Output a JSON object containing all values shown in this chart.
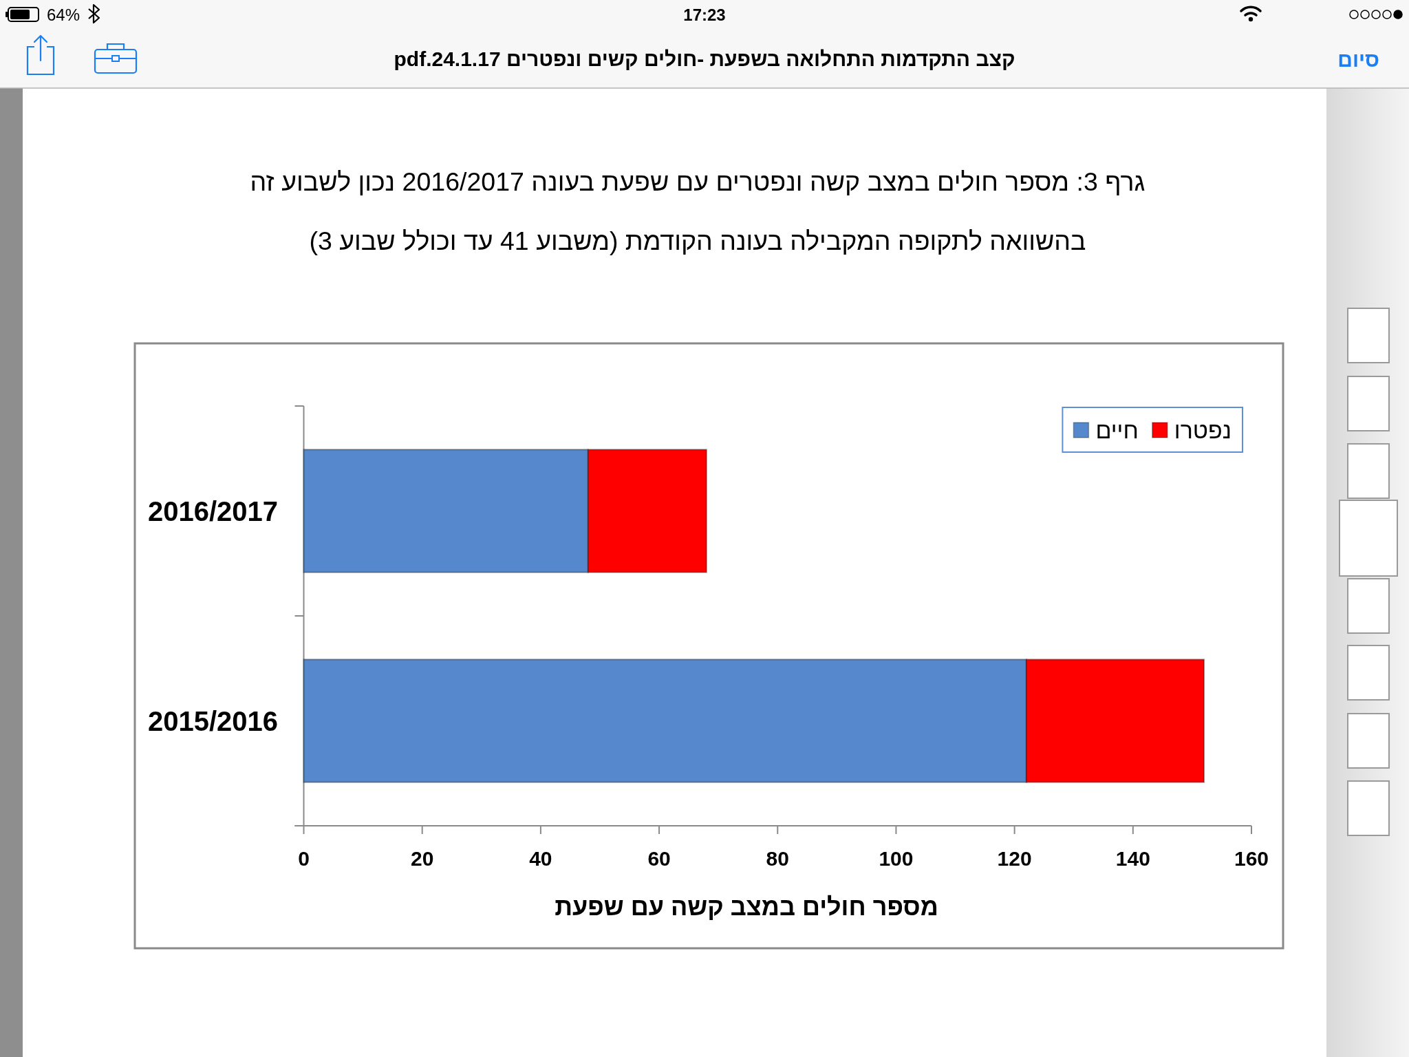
{
  "chart_data": {
    "type": "bar",
    "orientation": "horizontal",
    "stacked": true,
    "title": "גרף 3: מספר חולים במצב קשה ונפטרים עם שפעת בעונה 2016/2017 נכון לשבוע זה",
    "subtitle": "בהשוואה לתקופה המקבילה בעונה הקודמת (משבוע 41 עד וכולל שבוע 3)",
    "xlabel": "מספר חולים במצב קשה עם שפעת",
    "categories": [
      "2016/2017",
      "2015/2016"
    ],
    "series": [
      {
        "name": "חיים",
        "color": "#5588cc",
        "values": [
          48,
          122
        ]
      },
      {
        "name": "נפטרו",
        "color": "#ff0000",
        "values": [
          20,
          30
        ]
      }
    ],
    "xlim": [
      0,
      160
    ],
    "xticks": [
      0,
      20,
      40,
      60,
      80,
      100,
      120,
      140,
      160
    ],
    "legend": "top right",
    "annotations": [
      "17:23",
      "64%",
      "קצב התקדמות התחלואה בשפעת -חולים קשים ונפטרים 24.1.17.pdf",
      "סיום"
    ]
  }
}
